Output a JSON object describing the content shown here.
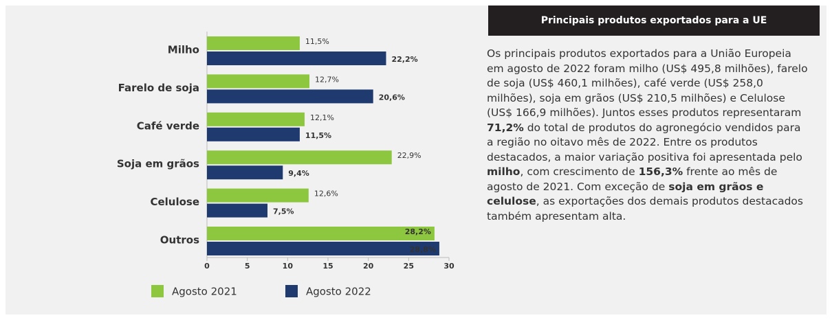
{
  "chart_data": {
    "type": "bar",
    "orientation": "horizontal",
    "categories": [
      "Milho",
      "Farelo de soja",
      "Café verde",
      "Soja em grãos",
      "Celulose",
      "Outros"
    ],
    "series": [
      {
        "name": "Agosto 2021",
        "color": "#8dc63f",
        "values": [
          11.5,
          12.7,
          12.1,
          22.9,
          12.6,
          28.2
        ],
        "value_labels": [
          "11,5%",
          "12,7%",
          "12,1%",
          "22,9%",
          "12,6%",
          "28,2%"
        ]
      },
      {
        "name": "Agosto 2022",
        "color": "#1f3a6e",
        "values": [
          22.2,
          20.6,
          11.5,
          9.4,
          7.5,
          28.8
        ],
        "value_labels": [
          "22,2%",
          "20,6%",
          "11,5%",
          "9,4%",
          "7,5%",
          "28,8%"
        ]
      }
    ],
    "xlim": [
      0,
      30
    ],
    "xticks": [
      0,
      5,
      10,
      15,
      20,
      25,
      30
    ],
    "legend": "bottom"
  },
  "sidebar": {
    "title": "Principais produtos exportados para a UE",
    "paragraph": [
      {
        "text": "Os principais produtos exportados para a União Europeia em agosto de 2022 foram milho (US$ 495,8 milhões), farelo de soja (US$ 460,1 milhões), café verde (US$ 258,0 milhões), soja em grãos (US$ 210,5 milhões) e Celulose (US$ 166,9 milhões). Juntos esses produtos representaram ",
        "bold": false
      },
      {
        "text": "71,2%",
        "bold": true
      },
      {
        "text": " do total de produtos do agronegócio vendidos para a região no oitavo mês de 2022. Entre os produtos destacados, a maior variação positiva foi apresentada pelo ",
        "bold": false
      },
      {
        "text": "milho",
        "bold": true
      },
      {
        "text": ", com crescimento de ",
        "bold": false
      },
      {
        "text": "156,3%",
        "bold": true
      },
      {
        "text": " frente ao mês de agosto de 2021. Com exceção de ",
        "bold": false
      },
      {
        "text": "soja em grãos e celulose",
        "bold": true
      },
      {
        "text": ", as exportações dos demais produtos destacados também apresentam alta.",
        "bold": false
      }
    ]
  }
}
